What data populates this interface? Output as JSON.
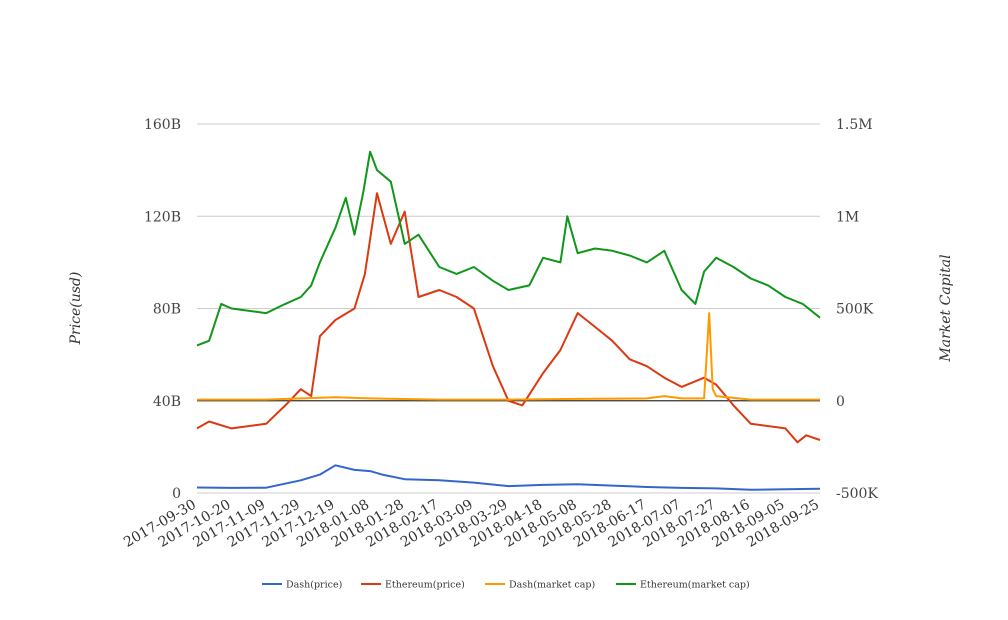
{
  "chart_data": {
    "type": "line",
    "x_ticks": [
      "2017-09-30",
      "2017-10-20",
      "2017-11-09",
      "2017-11-29",
      "2017-12-19",
      "2018-01-08",
      "2018-01-28",
      "2018-02-17",
      "2018-03-09",
      "2018-03-29",
      "2018-04-18",
      "2018-05-08",
      "2018-05-28",
      "2018-06-17",
      "2018-07-07",
      "2018-07-27",
      "2018-08-16",
      "2018-09-05",
      "2018-09-25"
    ],
    "y_left": {
      "label": "Price(usd)",
      "ticks": [
        "0",
        "40B",
        "80B",
        "120B",
        "160B"
      ],
      "range": [
        0,
        160
      ]
    },
    "y_right": {
      "label": "Market Capital",
      "ticks": [
        "-500K",
        "0",
        "500K",
        "1M",
        "1.5M"
      ],
      "range": [
        -500,
        1500
      ]
    },
    "grid": true,
    "legend_position": "bottom",
    "series": [
      {
        "name": "Dash(price)",
        "axis": "left",
        "color": "#3366cc",
        "points": [
          [
            "2017-09-30",
            2.4
          ],
          [
            "2017-10-20",
            2.2
          ],
          [
            "2017-11-09",
            2.3
          ],
          [
            "2017-11-29",
            5.5
          ],
          [
            "2017-12-10",
            8
          ],
          [
            "2017-12-19",
            12
          ],
          [
            "2017-12-30",
            10
          ],
          [
            "2018-01-08",
            9.5
          ],
          [
            "2018-01-15",
            8
          ],
          [
            "2018-01-28",
            6
          ],
          [
            "2018-02-17",
            5.5
          ],
          [
            "2018-03-09",
            4.5
          ],
          [
            "2018-03-29",
            3
          ],
          [
            "2018-04-18",
            3.5
          ],
          [
            "2018-05-08",
            3.8
          ],
          [
            "2018-05-28",
            3.2
          ],
          [
            "2018-06-17",
            2.6
          ],
          [
            "2018-07-07",
            2.2
          ],
          [
            "2018-07-27",
            2
          ],
          [
            "2018-08-16",
            1.4
          ],
          [
            "2018-09-05",
            1.6
          ],
          [
            "2018-09-25",
            1.8
          ]
        ]
      },
      {
        "name": "Ethereum(price)",
        "axis": "left",
        "color": "#dc3912",
        "points": [
          [
            "2017-09-30",
            28
          ],
          [
            "2017-10-07",
            31
          ],
          [
            "2017-10-20",
            28
          ],
          [
            "2017-11-09",
            30
          ],
          [
            "2017-11-20",
            38
          ],
          [
            "2017-11-29",
            45
          ],
          [
            "2017-12-05",
            42
          ],
          [
            "2017-12-10",
            68
          ],
          [
            "2017-12-19",
            75
          ],
          [
            "2017-12-30",
            80
          ],
          [
            "2018-01-05",
            95
          ],
          [
            "2018-01-12",
            130
          ],
          [
            "2018-01-20",
            108
          ],
          [
            "2018-01-28",
            122
          ],
          [
            "2018-02-05",
            85
          ],
          [
            "2018-02-17",
            88
          ],
          [
            "2018-02-27",
            85
          ],
          [
            "2018-03-09",
            80
          ],
          [
            "2018-03-20",
            55
          ],
          [
            "2018-03-29",
            40
          ],
          [
            "2018-04-06",
            38
          ],
          [
            "2018-04-18",
            52
          ],
          [
            "2018-04-28",
            62
          ],
          [
            "2018-05-08",
            78
          ],
          [
            "2018-05-18",
            72
          ],
          [
            "2018-05-28",
            66
          ],
          [
            "2018-06-07",
            58
          ],
          [
            "2018-06-17",
            55
          ],
          [
            "2018-06-27",
            50
          ],
          [
            "2018-07-07",
            46
          ],
          [
            "2018-07-20",
            50
          ],
          [
            "2018-07-27",
            47
          ],
          [
            "2018-08-06",
            38
          ],
          [
            "2018-08-16",
            30
          ],
          [
            "2018-09-05",
            28
          ],
          [
            "2018-09-12",
            22
          ],
          [
            "2018-09-17",
            25
          ],
          [
            "2018-09-25",
            23
          ]
        ]
      },
      {
        "name": "Dash(market cap)",
        "axis": "left",
        "color": "#ff9900",
        "points": [
          [
            "2017-09-30",
            40.5
          ],
          [
            "2017-11-09",
            40.5
          ],
          [
            "2017-11-29",
            41
          ],
          [
            "2017-12-19",
            41.5
          ],
          [
            "2018-01-08",
            41
          ],
          [
            "2018-02-17",
            40.5
          ],
          [
            "2018-03-29",
            40.5
          ],
          [
            "2018-05-08",
            40.8
          ],
          [
            "2018-06-17",
            41
          ],
          [
            "2018-06-27",
            42
          ],
          [
            "2018-07-07",
            41
          ],
          [
            "2018-07-20",
            41
          ],
          [
            "2018-07-23",
            78
          ],
          [
            "2018-07-25",
            45
          ],
          [
            "2018-07-27",
            42
          ],
          [
            "2018-08-16",
            40.5
          ],
          [
            "2018-09-05",
            40.5
          ],
          [
            "2018-09-25",
            40.5
          ]
        ]
      },
      {
        "name": "Ethereum(market cap)",
        "axis": "left",
        "color": "#109618",
        "points": [
          [
            "2017-09-30",
            64
          ],
          [
            "2017-10-07",
            66
          ],
          [
            "2017-10-14",
            82
          ],
          [
            "2017-10-20",
            80
          ],
          [
            "2017-11-09",
            78
          ],
          [
            "2017-11-20",
            82
          ],
          [
            "2017-11-29",
            85
          ],
          [
            "2017-12-05",
            90
          ],
          [
            "2017-12-10",
            100
          ],
          [
            "2017-12-19",
            115
          ],
          [
            "2017-12-25",
            128
          ],
          [
            "2017-12-30",
            112
          ],
          [
            "2018-01-04",
            130
          ],
          [
            "2018-01-08",
            148
          ],
          [
            "2018-01-12",
            140
          ],
          [
            "2018-01-20",
            135
          ],
          [
            "2018-01-28",
            108
          ],
          [
            "2018-02-05",
            112
          ],
          [
            "2018-02-17",
            98
          ],
          [
            "2018-02-27",
            95
          ],
          [
            "2018-03-09",
            98
          ],
          [
            "2018-03-20",
            92
          ],
          [
            "2018-03-29",
            88
          ],
          [
            "2018-04-10",
            90
          ],
          [
            "2018-04-18",
            102
          ],
          [
            "2018-04-28",
            100
          ],
          [
            "2018-05-02",
            120
          ],
          [
            "2018-05-08",
            104
          ],
          [
            "2018-05-18",
            106
          ],
          [
            "2018-05-28",
            105
          ],
          [
            "2018-06-07",
            103
          ],
          [
            "2018-06-17",
            100
          ],
          [
            "2018-06-27",
            105
          ],
          [
            "2018-07-07",
            88
          ],
          [
            "2018-07-15",
            82
          ],
          [
            "2018-07-20",
            96
          ],
          [
            "2018-07-27",
            102
          ],
          [
            "2018-08-06",
            98
          ],
          [
            "2018-08-16",
            93
          ],
          [
            "2018-08-26",
            90
          ],
          [
            "2018-09-05",
            85
          ],
          [
            "2018-09-15",
            82
          ],
          [
            "2018-09-25",
            76
          ]
        ]
      }
    ]
  }
}
